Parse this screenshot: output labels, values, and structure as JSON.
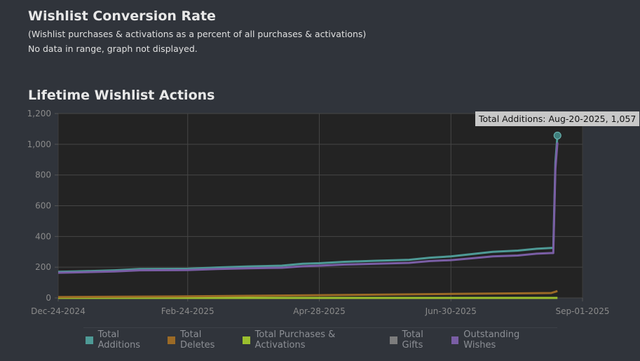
{
  "conversion": {
    "title": "Wishlist Conversion Rate",
    "subtitle": "(Wishlist purchases & activations as a percent of all purchases & activations)",
    "no_data": "No data in range, graph not displayed."
  },
  "lifetime": {
    "title": "Lifetime Wishlist Actions",
    "tooltip": "Total Additions: Aug-20-2025, 1,057"
  },
  "chart_data": {
    "type": "line",
    "title": "Lifetime Wishlist Actions",
    "xlabel": "",
    "ylabel": "",
    "x_ticks": [
      "Dec-24-2024",
      "Feb-24-2025",
      "Apr-28-2025",
      "Jun-30-2025",
      "Sep-01-2025"
    ],
    "y_ticks": [
      "0",
      "200",
      "400",
      "600",
      "800",
      "1,000",
      "1,200"
    ],
    "ylim": [
      0,
      1200
    ],
    "xlim": [
      "2024-12-24",
      "2025-09-01"
    ],
    "grid": true,
    "legend_position": "bottom",
    "highlighted_point": {
      "series": "Total Additions",
      "date": "2025-08-20",
      "value": 1057
    },
    "series": [
      {
        "name": "Total Additions",
        "color": "#4e9a96",
        "points": [
          [
            "2024-12-24",
            170
          ],
          [
            "2025-01-01",
            172
          ],
          [
            "2025-01-20",
            180
          ],
          [
            "2025-02-01",
            188
          ],
          [
            "2025-02-24",
            190
          ],
          [
            "2025-03-10",
            198
          ],
          [
            "2025-03-25",
            205
          ],
          [
            "2025-04-10",
            210
          ],
          [
            "2025-04-20",
            222
          ],
          [
            "2025-04-28",
            226
          ],
          [
            "2025-05-10",
            235
          ],
          [
            "2025-05-25",
            242
          ],
          [
            "2025-06-10",
            248
          ],
          [
            "2025-06-20",
            262
          ],
          [
            "2025-06-30",
            270
          ],
          [
            "2025-07-10",
            285
          ],
          [
            "2025-07-20",
            300
          ],
          [
            "2025-08-01",
            308
          ],
          [
            "2025-08-10",
            320
          ],
          [
            "2025-08-17",
            325
          ],
          [
            "2025-08-18",
            325
          ],
          [
            "2025-08-19",
            880
          ],
          [
            "2025-08-20",
            1057
          ]
        ]
      },
      {
        "name": "Total Deletes",
        "color": "#9b6a26",
        "points": [
          [
            "2024-12-24",
            6
          ],
          [
            "2025-02-24",
            10
          ],
          [
            "2025-04-28",
            18
          ],
          [
            "2025-06-30",
            26
          ],
          [
            "2025-08-17",
            32
          ],
          [
            "2025-08-19",
            40
          ],
          [
            "2025-08-20",
            45
          ]
        ]
      },
      {
        "name": "Total Purchases & Activations",
        "color": "#9bbf2e",
        "points": [
          [
            "2024-12-24",
            0
          ],
          [
            "2025-08-20",
            0
          ]
        ]
      },
      {
        "name": "Total Gifts",
        "color": "#7d7d7d",
        "points": [
          [
            "2024-12-24",
            0
          ],
          [
            "2025-08-20",
            0
          ]
        ]
      },
      {
        "name": "Outstanding Wishes",
        "color": "#7a5ea5",
        "points": [
          [
            "2024-12-24",
            164
          ],
          [
            "2025-01-01",
            166
          ],
          [
            "2025-01-20",
            172
          ],
          [
            "2025-02-01",
            180
          ],
          [
            "2025-02-24",
            181
          ],
          [
            "2025-03-10",
            188
          ],
          [
            "2025-03-25",
            193
          ],
          [
            "2025-04-10",
            196
          ],
          [
            "2025-04-20",
            206
          ],
          [
            "2025-04-28",
            210
          ],
          [
            "2025-05-10",
            217
          ],
          [
            "2025-05-25",
            222
          ],
          [
            "2025-06-10",
            228
          ],
          [
            "2025-06-20",
            240
          ],
          [
            "2025-06-30",
            246
          ],
          [
            "2025-07-10",
            258
          ],
          [
            "2025-07-20",
            270
          ],
          [
            "2025-08-01",
            276
          ],
          [
            "2025-08-10",
            288
          ],
          [
            "2025-08-17",
            292
          ],
          [
            "2025-08-18",
            292
          ],
          [
            "2025-08-19",
            840
          ],
          [
            "2025-08-20",
            1012
          ]
        ]
      }
    ]
  }
}
